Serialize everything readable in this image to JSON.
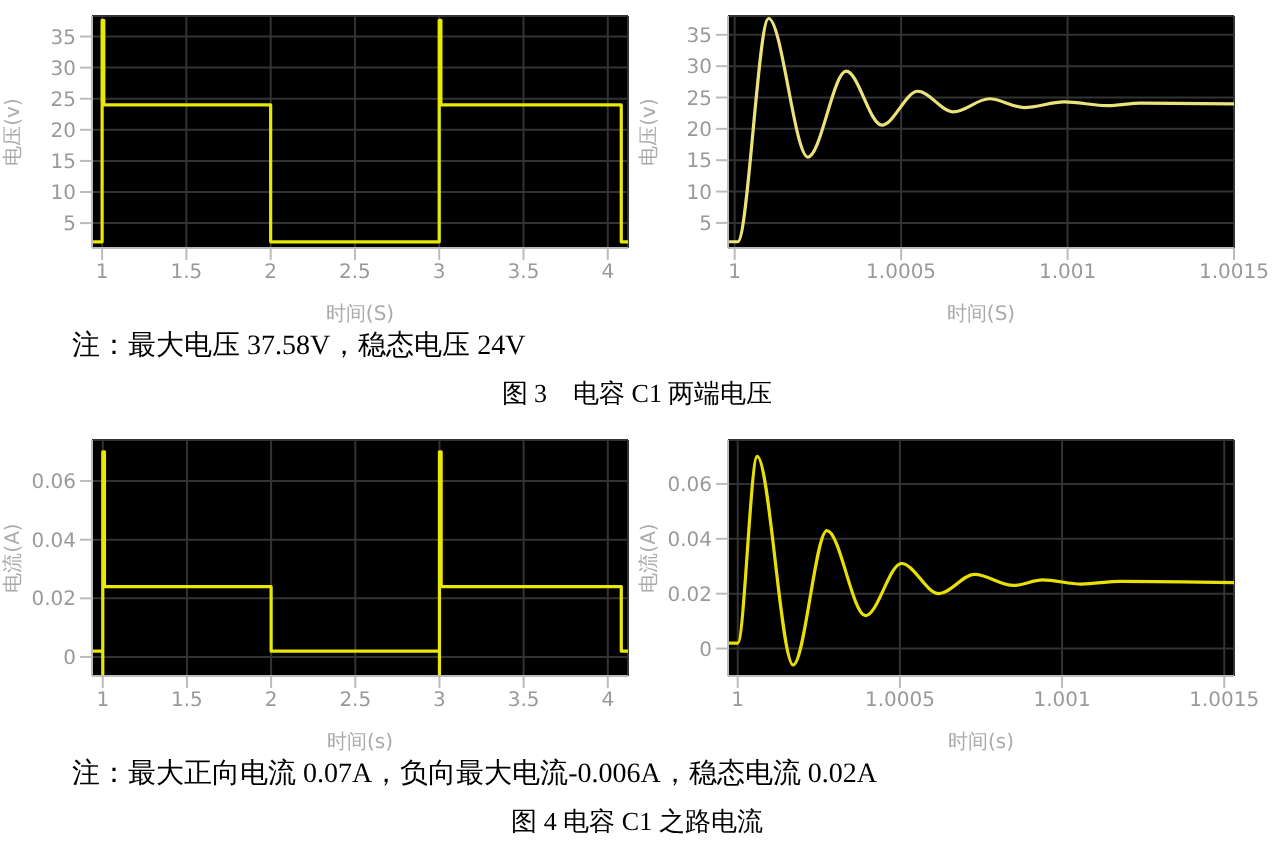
{
  "chart_data": [
    {
      "type": "step",
      "xlabel": "时间(S)",
      "ylabel": "电压(v)",
      "x": [
        0.94,
        1,
        1.01,
        2,
        3,
        3.01,
        4.08,
        4.12
      ],
      "series": [
        {
          "color": "#e8e800",
          "values": [
            2,
            37.6,
            24,
            2,
            37.6,
            24,
            2,
            2
          ]
        }
      ],
      "xlim": [
        0.94,
        4.12
      ],
      "xticks": [
        1,
        1.5,
        2,
        2.5,
        3,
        3.5,
        4
      ],
      "ylim": [
        1,
        38.3
      ],
      "yticks": [
        5,
        10,
        15,
        20,
        25,
        30,
        35
      ],
      "grid": true
    },
    {
      "type": "line",
      "xlabel": "时间(S)",
      "ylabel": "电压(v)",
      "x": [
        0.99998,
        1,
        1.000009,
        1.000102,
        1.00022,
        1.000335,
        1.000442,
        1.00055,
        1.000657,
        1.000765,
        1.00087,
        1.00099,
        1.00112,
        1.00122,
        1.0015
      ],
      "series": [
        {
          "color": "#ece27a",
          "values": [
            2,
            2,
            2,
            37.6,
            15.5,
            29.2,
            20.6,
            26,
            22.7,
            24.8,
            23.4,
            24.3,
            23.7,
            24.1,
            24
          ]
        }
      ],
      "xlim": [
        0.99998,
        1.0015
      ],
      "xticks": [
        1,
        1.0005,
        1.001,
        1.0015
      ],
      "ylim": [
        1,
        38
      ],
      "yticks": [
        5,
        10,
        15,
        20,
        25,
        30,
        35
      ],
      "grid": true,
      "annotations": [
        "注：最大电压 37.58V，稳态电压 24V",
        "图 3　电容 C1 两端电压"
      ]
    },
    {
      "type": "step",
      "xlabel": "时间(s)",
      "ylabel": "电流(A)",
      "x": [
        0.936,
        1,
        1,
        1.01,
        2,
        3,
        3,
        3.01,
        4.08,
        4.12
      ],
      "series": [
        {
          "color": "#e8e800",
          "values": [
            0.002,
            -0.006,
            0.07,
            0.024,
            0.002,
            -0.006,
            0.07,
            0.024,
            0.002,
            0.002
          ]
        }
      ],
      "xlim": [
        0.936,
        4.12
      ],
      "xticks": [
        1,
        1.5,
        2,
        2.5,
        3,
        3.5,
        4
      ],
      "ylim": [
        -0.0065,
        0.074
      ],
      "yticks": [
        0,
        0.02,
        0.04,
        0.06
      ],
      "grid": true
    },
    {
      "type": "line",
      "xlabel": "时间(s)",
      "ylabel": "电流(A)",
      "x": [
        0.99997,
        1,
        1.00006,
        1.000171,
        1.000275,
        1.000394,
        1.000505,
        1.00062,
        1.00073,
        1.00085,
        1.00094,
        1.00106,
        1.00118,
        1.00153
      ],
      "series": [
        {
          "color": "#e8e000",
          "values": [
            0.002,
            0.002,
            0.07,
            -0.006,
            0.043,
            0.012,
            0.031,
            0.02,
            0.027,
            0.023,
            0.025,
            0.0235,
            0.0245,
            0.024
          ]
        }
      ],
      "xlim": [
        0.99997,
        1.00153
      ],
      "xticks": [
        1,
        1.0005,
        1.001,
        1.0015
      ],
      "ylim": [
        -0.01,
        0.076
      ],
      "yticks": [
        0,
        0.02,
        0.04,
        0.06
      ],
      "grid": true,
      "annotations": [
        "注：最大正向电流 0.07A，负向最大电流-0.006A，稳态电流 0.02A",
        "图 4 电容 C1 之路电流"
      ]
    }
  ]
}
